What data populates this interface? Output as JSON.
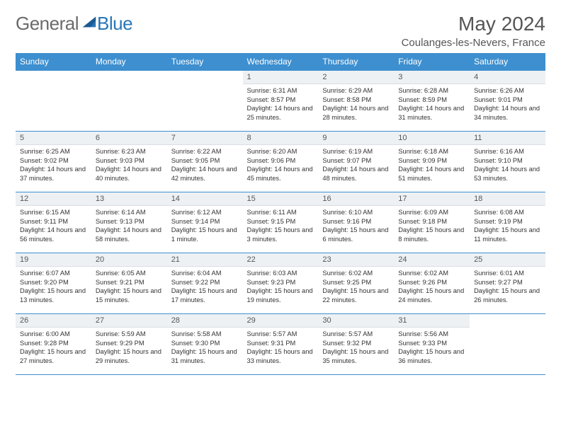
{
  "brand": {
    "word1": "General",
    "word2": "Blue"
  },
  "title": "May 2024",
  "location": "Coulanges-les-Nevers, France",
  "dayHeaders": [
    "Sunday",
    "Monday",
    "Tuesday",
    "Wednesday",
    "Thursday",
    "Friday",
    "Saturday"
  ],
  "colors": {
    "headerBg": "#3d8fcf",
    "rule": "#3d8fcf",
    "dayNumBg": "#eef1f4",
    "brandGray": "#6b6b6b",
    "brandBlue": "#2876b8"
  },
  "weeks": [
    [
      {
        "n": "",
        "sr": "",
        "ss": "",
        "dl": ""
      },
      {
        "n": "",
        "sr": "",
        "ss": "",
        "dl": ""
      },
      {
        "n": "",
        "sr": "",
        "ss": "",
        "dl": ""
      },
      {
        "n": "1",
        "sr": "Sunrise: 6:31 AM",
        "ss": "Sunset: 8:57 PM",
        "dl": "Daylight: 14 hours and 25 minutes."
      },
      {
        "n": "2",
        "sr": "Sunrise: 6:29 AM",
        "ss": "Sunset: 8:58 PM",
        "dl": "Daylight: 14 hours and 28 minutes."
      },
      {
        "n": "3",
        "sr": "Sunrise: 6:28 AM",
        "ss": "Sunset: 8:59 PM",
        "dl": "Daylight: 14 hours and 31 minutes."
      },
      {
        "n": "4",
        "sr": "Sunrise: 6:26 AM",
        "ss": "Sunset: 9:01 PM",
        "dl": "Daylight: 14 hours and 34 minutes."
      }
    ],
    [
      {
        "n": "5",
        "sr": "Sunrise: 6:25 AM",
        "ss": "Sunset: 9:02 PM",
        "dl": "Daylight: 14 hours and 37 minutes."
      },
      {
        "n": "6",
        "sr": "Sunrise: 6:23 AM",
        "ss": "Sunset: 9:03 PM",
        "dl": "Daylight: 14 hours and 40 minutes."
      },
      {
        "n": "7",
        "sr": "Sunrise: 6:22 AM",
        "ss": "Sunset: 9:05 PM",
        "dl": "Daylight: 14 hours and 42 minutes."
      },
      {
        "n": "8",
        "sr": "Sunrise: 6:20 AM",
        "ss": "Sunset: 9:06 PM",
        "dl": "Daylight: 14 hours and 45 minutes."
      },
      {
        "n": "9",
        "sr": "Sunrise: 6:19 AM",
        "ss": "Sunset: 9:07 PM",
        "dl": "Daylight: 14 hours and 48 minutes."
      },
      {
        "n": "10",
        "sr": "Sunrise: 6:18 AM",
        "ss": "Sunset: 9:09 PM",
        "dl": "Daylight: 14 hours and 51 minutes."
      },
      {
        "n": "11",
        "sr": "Sunrise: 6:16 AM",
        "ss": "Sunset: 9:10 PM",
        "dl": "Daylight: 14 hours and 53 minutes."
      }
    ],
    [
      {
        "n": "12",
        "sr": "Sunrise: 6:15 AM",
        "ss": "Sunset: 9:11 PM",
        "dl": "Daylight: 14 hours and 56 minutes."
      },
      {
        "n": "13",
        "sr": "Sunrise: 6:14 AM",
        "ss": "Sunset: 9:13 PM",
        "dl": "Daylight: 14 hours and 58 minutes."
      },
      {
        "n": "14",
        "sr": "Sunrise: 6:12 AM",
        "ss": "Sunset: 9:14 PM",
        "dl": "Daylight: 15 hours and 1 minute."
      },
      {
        "n": "15",
        "sr": "Sunrise: 6:11 AM",
        "ss": "Sunset: 9:15 PM",
        "dl": "Daylight: 15 hours and 3 minutes."
      },
      {
        "n": "16",
        "sr": "Sunrise: 6:10 AM",
        "ss": "Sunset: 9:16 PM",
        "dl": "Daylight: 15 hours and 6 minutes."
      },
      {
        "n": "17",
        "sr": "Sunrise: 6:09 AM",
        "ss": "Sunset: 9:18 PM",
        "dl": "Daylight: 15 hours and 8 minutes."
      },
      {
        "n": "18",
        "sr": "Sunrise: 6:08 AM",
        "ss": "Sunset: 9:19 PM",
        "dl": "Daylight: 15 hours and 11 minutes."
      }
    ],
    [
      {
        "n": "19",
        "sr": "Sunrise: 6:07 AM",
        "ss": "Sunset: 9:20 PM",
        "dl": "Daylight: 15 hours and 13 minutes."
      },
      {
        "n": "20",
        "sr": "Sunrise: 6:05 AM",
        "ss": "Sunset: 9:21 PM",
        "dl": "Daylight: 15 hours and 15 minutes."
      },
      {
        "n": "21",
        "sr": "Sunrise: 6:04 AM",
        "ss": "Sunset: 9:22 PM",
        "dl": "Daylight: 15 hours and 17 minutes."
      },
      {
        "n": "22",
        "sr": "Sunrise: 6:03 AM",
        "ss": "Sunset: 9:23 PM",
        "dl": "Daylight: 15 hours and 19 minutes."
      },
      {
        "n": "23",
        "sr": "Sunrise: 6:02 AM",
        "ss": "Sunset: 9:25 PM",
        "dl": "Daylight: 15 hours and 22 minutes."
      },
      {
        "n": "24",
        "sr": "Sunrise: 6:02 AM",
        "ss": "Sunset: 9:26 PM",
        "dl": "Daylight: 15 hours and 24 minutes."
      },
      {
        "n": "25",
        "sr": "Sunrise: 6:01 AM",
        "ss": "Sunset: 9:27 PM",
        "dl": "Daylight: 15 hours and 26 minutes."
      }
    ],
    [
      {
        "n": "26",
        "sr": "Sunrise: 6:00 AM",
        "ss": "Sunset: 9:28 PM",
        "dl": "Daylight: 15 hours and 27 minutes."
      },
      {
        "n": "27",
        "sr": "Sunrise: 5:59 AM",
        "ss": "Sunset: 9:29 PM",
        "dl": "Daylight: 15 hours and 29 minutes."
      },
      {
        "n": "28",
        "sr": "Sunrise: 5:58 AM",
        "ss": "Sunset: 9:30 PM",
        "dl": "Daylight: 15 hours and 31 minutes."
      },
      {
        "n": "29",
        "sr": "Sunrise: 5:57 AM",
        "ss": "Sunset: 9:31 PM",
        "dl": "Daylight: 15 hours and 33 minutes."
      },
      {
        "n": "30",
        "sr": "Sunrise: 5:57 AM",
        "ss": "Sunset: 9:32 PM",
        "dl": "Daylight: 15 hours and 35 minutes."
      },
      {
        "n": "31",
        "sr": "Sunrise: 5:56 AM",
        "ss": "Sunset: 9:33 PM",
        "dl": "Daylight: 15 hours and 36 minutes."
      },
      {
        "n": "",
        "sr": "",
        "ss": "",
        "dl": ""
      }
    ]
  ]
}
